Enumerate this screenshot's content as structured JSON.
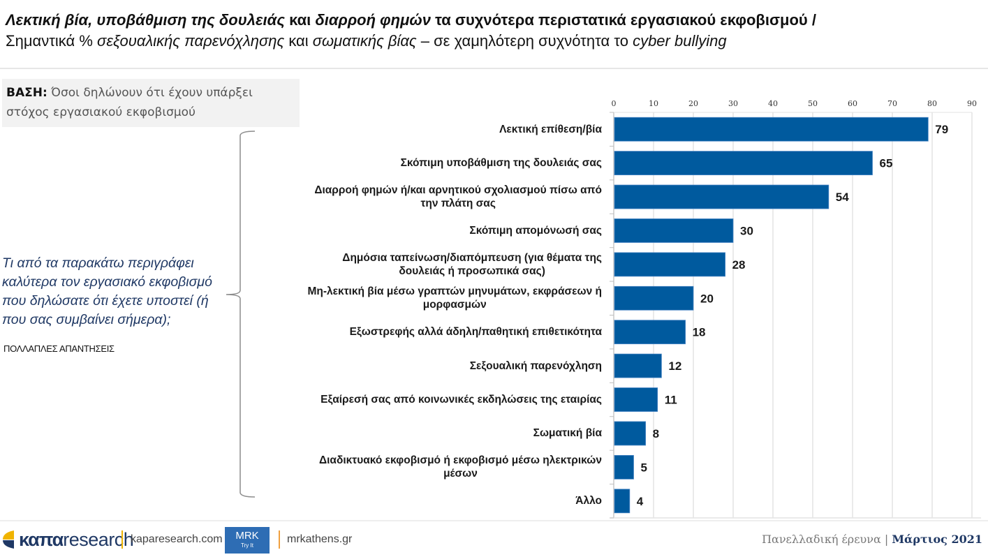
{
  "header": {
    "title_line1": [
      {
        "text": "Λεκτική βία, υποβάθμιση της δουλειάς",
        "italic": true
      },
      {
        "text": " και ",
        "italic": false
      },
      {
        "text": "διαρροή φημών",
        "italic": true
      },
      {
        "text": " τα συχνότερα περιστατικά εργασιακού εκφοβισμού /",
        "italic": false
      }
    ],
    "title_line2": [
      {
        "text": "Σημαντικά % ",
        "italic": false
      },
      {
        "text": "σεξουαλικής παρενόχλησης",
        "italic": true
      },
      {
        "text": " και ",
        "italic": false
      },
      {
        "text": "σωματικής βίας",
        "italic": true
      },
      {
        "text": " – σε χαμηλότερη συχνότητα το ",
        "italic": false
      },
      {
        "text": "cyber bullying",
        "italic": true
      }
    ]
  },
  "base": {
    "label": "ΒΑΣΗ:",
    "text_line1": " Όσοι δηλώνουν ότι έχουν υπάρξει",
    "text_line2": "στόχος εργασιακού εκφοβισμού"
  },
  "question": {
    "text": "Τι από τα παρακάτω περιγράφει καλύτερα τον εργασιακό εκφοβισμό που δηλώσατε ότι έχετε υποστεί (ή που σας συμβαίνει σήμερα);",
    "note": "ΠΟΛΛΑΠΛΕΣ ΑΠΑΝΤΗΣΕΙΣ"
  },
  "chart_data": {
    "type": "bar",
    "orientation": "horizontal",
    "title": "",
    "xlabel": "",
    "ylabel": "",
    "xlim": [
      0,
      90
    ],
    "x_ticks": [
      0,
      10,
      20,
      30,
      40,
      50,
      60,
      70,
      80,
      90
    ],
    "x_axis_position": "top",
    "grid": true,
    "bar_color": "#005a9e",
    "categories": [
      [
        "Λεκτική επίθεση/βία"
      ],
      [
        "Σκόπιμη υποβάθμιση της δουλειάς σας"
      ],
      [
        "Διαρροή φημών ή/και αρνητικού σχολιασμού πίσω από",
        "την πλάτη σας"
      ],
      [
        "Σκόπιμη απομόνωσή σας"
      ],
      [
        "Δημόσια ταπείνωση/διαπόμπευση (για θέματα της",
        "δουλειάς ή προσωπικά σας)"
      ],
      [
        "Μη-λεκτική βία μέσω γραπτών μηνυμάτων, εκφράσεων ή",
        "μορφασμών"
      ],
      [
        "Εξωστρεφής αλλά άδηλη/παθητική επιθετικότητα"
      ],
      [
        "Σεξουαλική παρενόχληση"
      ],
      [
        "Εξαίρεσή σας από κοινωνικές εκδηλώσεις της εταιρίας"
      ],
      [
        "Σωματική βία"
      ],
      [
        "Διαδικτυακό εκφοβισμό ή εκφοβισμό μέσω ηλεκτρικών",
        "μέσων"
      ],
      [
        "Άλλο"
      ]
    ],
    "values": [
      79,
      65,
      54,
      30,
      28,
      20,
      18,
      12,
      11,
      8,
      5,
      4
    ]
  },
  "footer": {
    "logo_kana": "καπα",
    "logo_research": "research",
    "link1": "kaparesearch.com",
    "mrk_badge": "MRK",
    "mrk_tagline": "Try It",
    "link2": "mrkathens.gr",
    "survey_label": "Πανελλαδική έρευνα | ",
    "survey_date": "Μάρτιος 2021"
  }
}
